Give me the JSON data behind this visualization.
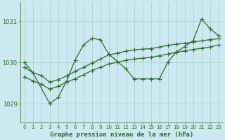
{
  "title": "Graphe pression niveau de la mer (hPa)",
  "bg_color": "#cce8f0",
  "grid_color": "#aacccc",
  "line_color": "#2d6a2d",
  "xlim": [
    -0.5,
    23.5
  ],
  "ylim": [
    1028.55,
    1031.45
  ],
  "yticks": [
    1029,
    1030,
    1031
  ],
  "xticks": [
    0,
    1,
    2,
    3,
    4,
    5,
    6,
    7,
    8,
    9,
    10,
    11,
    12,
    13,
    14,
    15,
    16,
    17,
    18,
    19,
    20,
    21,
    22,
    23
  ],
  "s1_x": [
    0,
    1,
    3,
    4,
    5,
    6,
    7,
    8,
    9,
    10,
    12,
    13,
    14,
    15,
    16,
    17,
    18,
    19,
    20,
    21,
    22,
    23
  ],
  "s1_y": [
    1030.0,
    1029.75,
    1029.0,
    1029.15,
    1029.55,
    1030.05,
    1030.42,
    1030.58,
    1030.55,
    1030.2,
    1029.85,
    1029.6,
    1029.6,
    1029.6,
    1029.6,
    1030.0,
    1030.25,
    1030.38,
    1030.52,
    1031.05,
    1030.82,
    1030.65
  ],
  "s2_x": [
    0,
    1,
    2,
    3,
    4,
    5,
    6,
    7,
    8,
    9,
    10,
    11,
    12,
    13,
    14,
    15,
    16,
    17,
    18,
    19,
    20,
    21,
    22,
    23
  ],
  "s2_y": [
    1029.88,
    1029.75,
    1029.68,
    1029.52,
    1029.58,
    1029.67,
    1029.78,
    1029.88,
    1029.98,
    1030.08,
    1030.18,
    1030.22,
    1030.27,
    1030.3,
    1030.32,
    1030.33,
    1030.37,
    1030.41,
    1030.44,
    1030.46,
    1030.49,
    1030.52,
    1030.55,
    1030.57
  ],
  "s3_x": [
    0,
    1,
    2,
    3,
    4,
    5,
    6,
    7,
    8,
    9,
    10,
    11,
    12,
    13,
    14,
    15,
    16,
    17,
    18,
    19,
    20,
    21,
    22,
    23
  ],
  "s3_y": [
    1029.65,
    1029.55,
    1029.47,
    1029.35,
    1029.42,
    1029.52,
    1029.6,
    1029.7,
    1029.8,
    1029.88,
    1029.96,
    1030.0,
    1030.05,
    1030.08,
    1030.1,
    1030.12,
    1030.16,
    1030.2,
    1030.24,
    1030.28,
    1030.31,
    1030.34,
    1030.37,
    1030.42
  ],
  "marker": "+",
  "markersize": 4.0,
  "linewidth": 0.9,
  "ylabel_fontsize": 6.0,
  "xlabel_fontsize": 6.0,
  "tick_fontsize": 5.0,
  "title_fontsize": 6.5
}
